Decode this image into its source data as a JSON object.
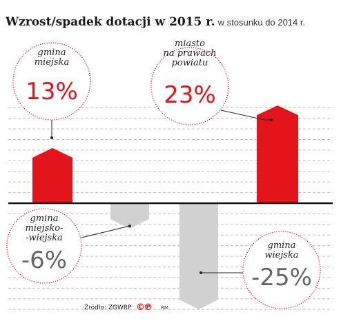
{
  "title": "Wzrost/spadek dotacji w 2015 r.",
  "subtitle": "w stosunku do 2014 r.",
  "source": "Źródło: ZGWRP",
  "copyright_mark": "©℗",
  "author": "RM",
  "colors": {
    "positive": "#e3141b",
    "negative": "#d1d1d1",
    "text_negative": "#666666",
    "grid": "#bdbdbd",
    "axis": "#111111"
  },
  "chart_data": {
    "type": "bar",
    "categories": [
      "gmina miejska",
      "gmina miejsko-wiejska",
      "gmina wiejska",
      "miasto na prawach powiatu"
    ],
    "values": [
      13,
      -6,
      -25,
      23
    ],
    "value_labels": [
      "13%",
      "-6%",
      "-25%",
      "23%"
    ],
    "label_lines": [
      [
        "gmina",
        "miejska"
      ],
      [
        "gmina",
        "miejsko-",
        "-wiejska"
      ],
      [
        "gmina",
        "wiejska"
      ],
      [
        "miasto",
        "na prawach",
        "powiatu"
      ]
    ],
    "unit": "%",
    "ylim": [
      -27,
      24
    ],
    "grid": true,
    "axis_labels": false
  }
}
